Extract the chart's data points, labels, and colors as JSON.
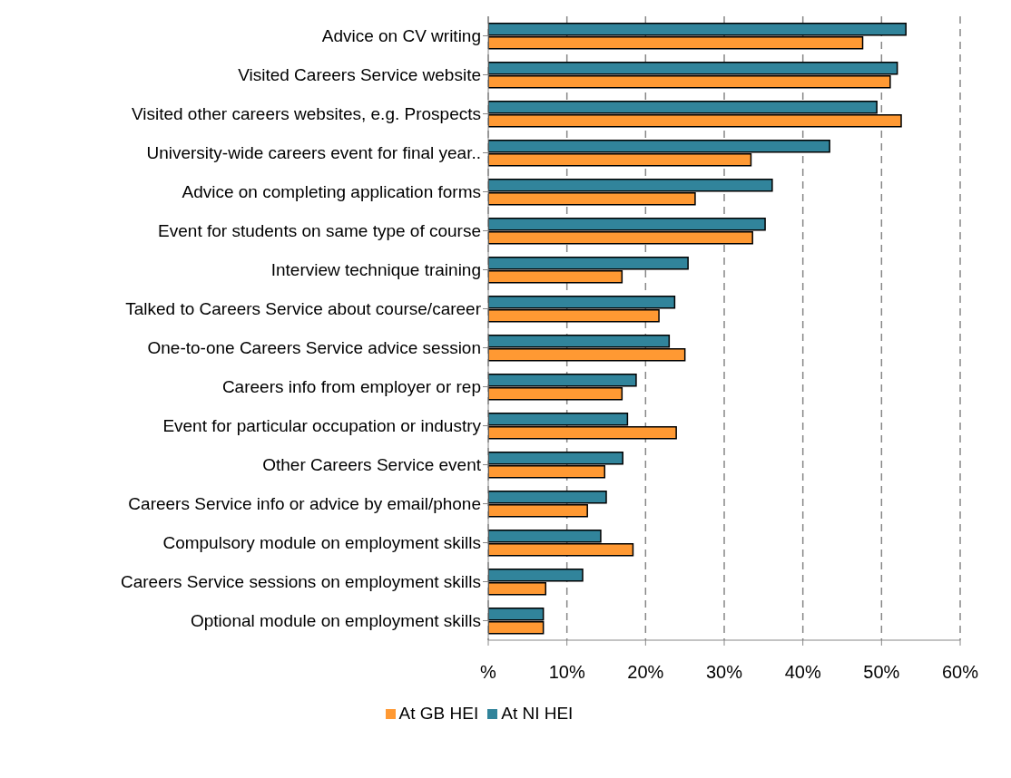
{
  "chart_data": {
    "type": "bar",
    "orientation": "horizontal",
    "categories": [
      "Advice on CV writing",
      "Visited Careers Service website",
      "Visited other careers websites, e.g. Prospects",
      "University-wide careers event for final year..",
      "Advice on completing application forms",
      "Event for students on same type of course",
      "Interview technique training",
      "Talked to Careers Service about course/career",
      "One-to-one Careers Service advice session",
      "Careers info from employer or rep",
      "Event for particular occupation or industry",
      "Other Careers Service event",
      "Careers Service info or advice by email/phone",
      "Compulsory module on employment skills",
      "Careers Service sessions on employment skills",
      "Optional module on  employment skills"
    ],
    "series": [
      {
        "name": "At NI HEI",
        "color": "#31849b",
        "values": [
          53.1,
          52.0,
          49.4,
          43.4,
          36.1,
          35.2,
          25.4,
          23.7,
          23.0,
          18.8,
          17.7,
          17.1,
          15.0,
          14.3,
          12.0,
          7.0
        ]
      },
      {
        "name": "At GB HEI",
        "color": "#ff9933",
        "values": [
          47.6,
          51.1,
          52.5,
          33.4,
          26.3,
          33.6,
          17.0,
          21.7,
          25.0,
          17.0,
          23.9,
          14.8,
          12.6,
          18.4,
          7.3,
          7.0
        ]
      }
    ],
    "xlim": [
      0,
      60
    ],
    "xticks": [
      {
        "value": 0,
        "label": "%"
      },
      {
        "value": 10,
        "label": "10%"
      },
      {
        "value": 20,
        "label": "20%"
      },
      {
        "value": 30,
        "label": "30%"
      },
      {
        "value": 40,
        "label": "40%"
      },
      {
        "value": 50,
        "label": "50%"
      },
      {
        "value": 60,
        "label": "60%"
      }
    ],
    "grid": "x",
    "legend": "bottom"
  }
}
